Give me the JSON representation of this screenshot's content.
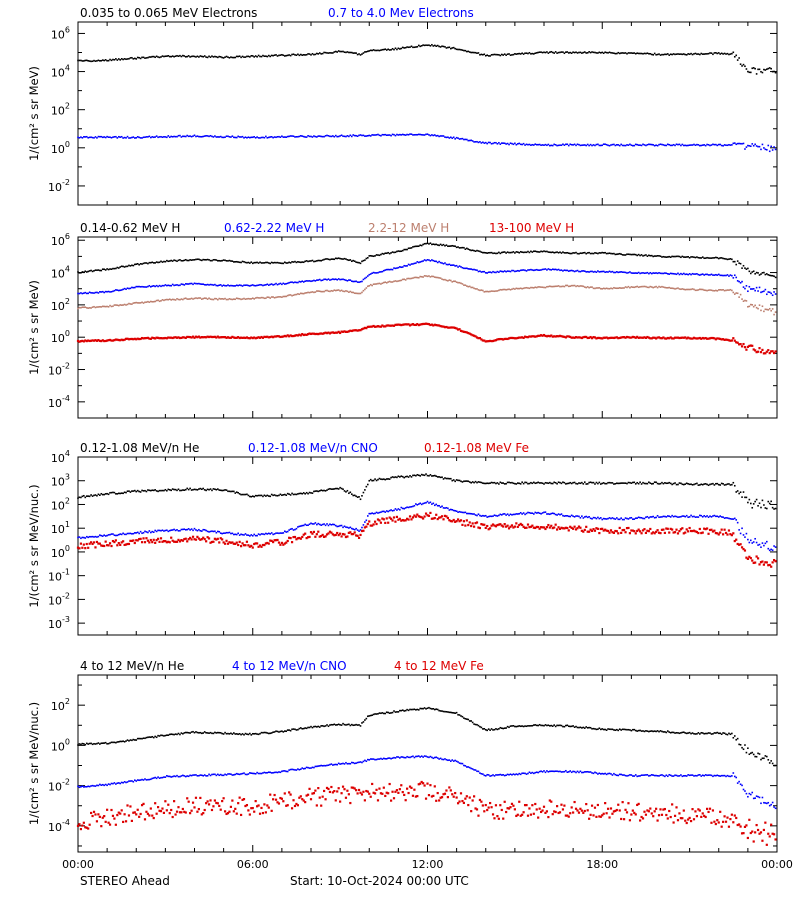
{
  "chart_data": [
    {
      "type": "scatter",
      "ylabel": "1/(cm² s sr MeV)",
      "yscale": "log",
      "ylim_exp": [
        -3,
        6.6
      ],
      "yticks_exp": [
        -2,
        0,
        2,
        4,
        6
      ],
      "xlim": [
        "00:00",
        "24:00"
      ],
      "series": [
        {
          "name": "0.035 to 0.065 MeV Electrons",
          "color": "#000000",
          "x": [
            0,
            1,
            2,
            3,
            4,
            5,
            6,
            7,
            8,
            9,
            9.7,
            10,
            11,
            12,
            13,
            14,
            15,
            16,
            17,
            18,
            19,
            20,
            21,
            22,
            22.5,
            23,
            24
          ],
          "log_y": [
            4.55,
            4.6,
            4.7,
            4.8,
            4.8,
            4.75,
            4.8,
            4.85,
            4.9,
            5.05,
            4.9,
            5.1,
            5.2,
            5.4,
            5.2,
            4.85,
            4.9,
            5.0,
            5.0,
            5.0,
            4.95,
            4.9,
            4.9,
            4.95,
            4.9,
            4.1,
            4.0
          ]
        },
        {
          "name": "0.7 to 4.0 Mev Electrons",
          "color": "#0000ff",
          "x": [
            0,
            2,
            4,
            6,
            8,
            10,
            11,
            12,
            13,
            14,
            16,
            18,
            20,
            22,
            23,
            24
          ],
          "log_y": [
            0.55,
            0.55,
            0.62,
            0.55,
            0.6,
            0.65,
            0.68,
            0.68,
            0.5,
            0.25,
            0.15,
            0.15,
            0.15,
            0.15,
            0.1,
            -0.1
          ]
        }
      ]
    },
    {
      "type": "scatter",
      "ylabel": "1/(cm² s sr MeV)",
      "yscale": "log",
      "ylim_exp": [
        -5,
        6.2
      ],
      "yticks_exp": [
        -4,
        -2,
        0,
        2,
        4,
        6
      ],
      "xlim": [
        "00:00",
        "24:00"
      ],
      "series": [
        {
          "name": "0.14-0.62 MeV H",
          "color": "#000000",
          "x": [
            0,
            1,
            2,
            3,
            4,
            5,
            6,
            7,
            8,
            9,
            9.7,
            10,
            11,
            12,
            13,
            14,
            15,
            16,
            17,
            18,
            19,
            20,
            21,
            22,
            22.5,
            23,
            24
          ],
          "log_y": [
            4.0,
            4.2,
            4.5,
            4.7,
            4.8,
            4.75,
            4.6,
            4.6,
            4.7,
            4.9,
            4.6,
            5.0,
            5.3,
            5.8,
            5.6,
            5.2,
            5.25,
            5.3,
            5.2,
            5.2,
            5.1,
            5.0,
            4.95,
            4.9,
            4.8,
            4.1,
            3.8
          ]
        },
        {
          "name": "0.62-2.22 MeV H",
          "color": "#0000ff",
          "x": [
            0,
            1,
            2,
            3,
            4,
            5,
            6,
            7,
            8,
            9,
            9.7,
            10,
            11,
            12,
            13,
            14,
            15,
            16,
            17,
            18,
            19,
            20,
            21,
            22,
            22.5,
            23,
            24
          ],
          "log_y": [
            2.7,
            2.8,
            3.1,
            3.2,
            3.3,
            3.2,
            3.2,
            3.3,
            3.5,
            3.6,
            3.4,
            3.9,
            4.3,
            4.8,
            4.4,
            4.0,
            4.1,
            4.2,
            4.1,
            4.05,
            4.0,
            3.95,
            3.9,
            3.85,
            3.8,
            3.0,
            2.7
          ]
        },
        {
          "name": "2.2-12 MeV H",
          "color": "#bc7f6e",
          "x": [
            0,
            1,
            2,
            3,
            4,
            5,
            6,
            7,
            8,
            9,
            9.7,
            10,
            11,
            12,
            13,
            14,
            15,
            16,
            17,
            18,
            19,
            20,
            21,
            22,
            22.5,
            23,
            24
          ],
          "log_y": [
            1.8,
            1.9,
            2.1,
            2.3,
            2.4,
            2.35,
            2.4,
            2.5,
            2.8,
            2.9,
            2.7,
            3.2,
            3.5,
            3.8,
            3.4,
            2.8,
            3.0,
            3.1,
            3.2,
            3.0,
            3.1,
            3.1,
            2.95,
            2.9,
            2.9,
            2.0,
            1.5
          ]
        },
        {
          "name": "13-100 MeV H",
          "color": "#dd0000",
          "x": [
            0,
            1,
            2,
            3,
            4,
            5,
            6,
            7,
            8,
            9,
            9.7,
            10,
            11,
            12,
            13,
            14,
            15,
            16,
            17,
            18,
            19,
            20,
            21,
            22,
            22.5,
            23,
            24
          ],
          "log_y": [
            -0.25,
            -0.2,
            -0.1,
            -0.05,
            0.0,
            0.0,
            -0.05,
            0.05,
            0.2,
            0.3,
            0.45,
            0.65,
            0.75,
            0.8,
            0.55,
            -0.25,
            -0.05,
            0.1,
            0.0,
            -0.05,
            0.0,
            -0.05,
            -0.05,
            -0.1,
            -0.2,
            -0.6,
            -1.0
          ]
        }
      ]
    },
    {
      "type": "scatter",
      "ylabel": "1/(cm² s sr MeV/nuc.)",
      "yscale": "log",
      "ylim_exp": [
        -3.5,
        4
      ],
      "yticks_exp": [
        -3,
        -2,
        -1,
        0,
        1,
        2,
        3,
        4
      ],
      "xlim": [
        "00:00",
        "24:00"
      ],
      "series": [
        {
          "name": "0.12-1.08 MeV/n He",
          "color": "#000000",
          "x": [
            0,
            1,
            2,
            3,
            4,
            5,
            6,
            7,
            8,
            9,
            9.7,
            10,
            11,
            12,
            13,
            14,
            15,
            16,
            17,
            18,
            19,
            20,
            21,
            22,
            22.5,
            23,
            24
          ],
          "log_y": [
            2.3,
            2.45,
            2.55,
            2.6,
            2.65,
            2.6,
            2.35,
            2.4,
            2.5,
            2.7,
            2.25,
            3.0,
            3.15,
            3.25,
            3.0,
            2.9,
            2.9,
            2.9,
            2.9,
            2.9,
            2.9,
            2.9,
            2.85,
            2.85,
            2.85,
            2.1,
            1.9
          ]
        },
        {
          "name": "0.12-1.08 MeV/n CNO",
          "color": "#0000ff",
          "x": [
            0,
            1,
            2,
            3,
            4,
            5,
            6,
            7,
            8,
            9,
            9.7,
            10,
            11,
            12,
            13,
            14,
            15,
            16,
            17,
            18,
            19,
            20,
            21,
            22,
            22.5,
            23,
            24
          ],
          "log_y": [
            0.6,
            0.7,
            0.8,
            0.9,
            0.95,
            0.8,
            0.7,
            0.8,
            1.2,
            1.1,
            0.9,
            1.6,
            1.8,
            2.1,
            1.7,
            1.5,
            1.6,
            1.65,
            1.5,
            1.4,
            1.4,
            1.5,
            1.5,
            1.5,
            1.4,
            0.5,
            0.2
          ]
        },
        {
          "name": "0.12-1.08 MeV Fe",
          "color": "#dd0000",
          "x": [
            0,
            1,
            2,
            3,
            4,
            5,
            6,
            7,
            8,
            9,
            9.7,
            10,
            11,
            12,
            13,
            14,
            15,
            16,
            17,
            18,
            19,
            20,
            21,
            22,
            22.5,
            23,
            24
          ],
          "log_y": [
            0.25,
            0.35,
            0.45,
            0.5,
            0.55,
            0.45,
            0.3,
            0.4,
            0.75,
            0.75,
            0.7,
            1.2,
            1.4,
            1.55,
            1.3,
            1.05,
            1.1,
            1.05,
            1.0,
            0.9,
            0.9,
            0.9,
            0.9,
            0.85,
            0.8,
            -0.3,
            -0.5
          ]
        }
      ]
    },
    {
      "type": "scatter",
      "ylabel": "1/(cm² s sr MeV/nuc.)",
      "yscale": "log",
      "ylim_exp": [
        -5.3,
        3.5
      ],
      "yticks_exp": [
        -4,
        -2,
        0,
        2
      ],
      "xlim": [
        "00:00",
        "24:00"
      ],
      "series": [
        {
          "name": "4 to 12 MeV/n He",
          "color": "#000000",
          "x": [
            0,
            1,
            2,
            3,
            4,
            5,
            6,
            7,
            8,
            9,
            9.7,
            10,
            11,
            12,
            13,
            14,
            15,
            16,
            17,
            18,
            19,
            20,
            21,
            22,
            22.5,
            23,
            24
          ],
          "log_y": [
            0.05,
            0.1,
            0.3,
            0.5,
            0.65,
            0.6,
            0.55,
            0.7,
            0.9,
            1.05,
            1.0,
            1.5,
            1.7,
            1.85,
            1.6,
            0.75,
            0.95,
            1.0,
            0.95,
            0.8,
            0.75,
            0.7,
            0.6,
            0.6,
            0.55,
            -0.3,
            -0.9
          ]
        },
        {
          "name": "4 to 12 MeV/n CNO",
          "color": "#0000ff",
          "x": [
            0,
            1,
            2,
            3,
            4,
            5,
            6,
            7,
            8,
            9,
            9.7,
            10,
            11,
            12,
            13,
            14,
            15,
            16,
            17,
            18,
            19,
            20,
            21,
            22,
            22.5,
            23,
            24
          ],
          "log_y": [
            -2.05,
            -1.95,
            -1.75,
            -1.55,
            -1.5,
            -1.45,
            -1.4,
            -1.3,
            -1.1,
            -0.9,
            -0.85,
            -0.7,
            -0.6,
            -0.55,
            -0.8,
            -1.5,
            -1.45,
            -1.3,
            -1.3,
            -1.4,
            -1.5,
            -1.5,
            -1.5,
            -1.5,
            -1.55,
            -2.4,
            -3.1
          ]
        },
        {
          "name": "4 to 12 MeV Fe",
          "color": "#dd0000",
          "x": [
            0,
            1,
            2,
            3,
            4,
            5,
            6,
            7,
            8,
            9,
            9.7,
            10,
            11,
            12,
            13,
            14,
            15,
            16,
            17,
            18,
            19,
            20,
            21,
            22,
            22.5,
            23,
            24
          ],
          "log_y": [
            -3.8,
            -3.6,
            -3.3,
            -3.15,
            -3.0,
            -3.05,
            -3.0,
            -2.8,
            -2.6,
            -2.45,
            -2.4,
            -2.35,
            -2.3,
            -2.25,
            -2.5,
            -3.3,
            -3.2,
            -3.15,
            -3.25,
            -3.2,
            -3.3,
            -3.3,
            -3.5,
            -3.6,
            -3.7,
            -4.2,
            -4.5
          ]
        }
      ]
    }
  ],
  "x_tick_labels": [
    "00:00",
    "06:00",
    "12:00",
    "18:00",
    "00:00"
  ],
  "footer": {
    "spacecraft": "STEREO Ahead",
    "start": "Start: 10-Oct-2024 00:00 UTC"
  }
}
